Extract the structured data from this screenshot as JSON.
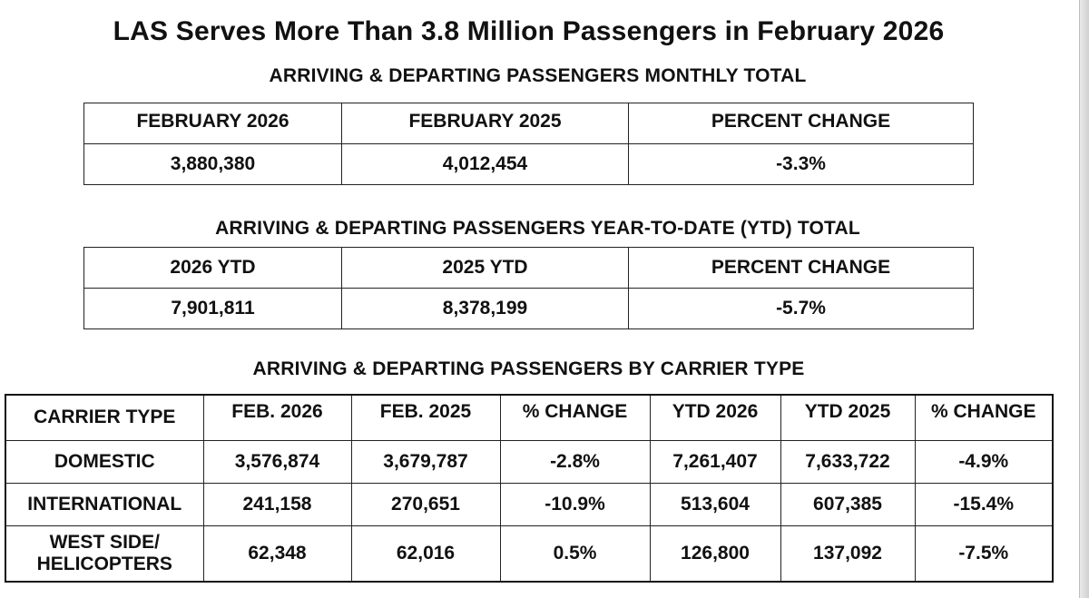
{
  "title": "LAS Serves More Than 3.8 Million Passengers in February 2026",
  "monthly": {
    "heading": "ARRIVING & DEPARTING PASSENGERS MONTHLY TOTAL",
    "headers": [
      "FEBRUARY 2026",
      "FEBRUARY 2025",
      "PERCENT CHANGE"
    ],
    "values": [
      "3,880,380",
      "4,012,454",
      "-3.3%"
    ]
  },
  "ytd": {
    "heading": "ARRIVING & DEPARTING PASSENGERS YEAR-TO-DATE (YTD) TOTAL",
    "headers": [
      "2026 YTD",
      "2025 YTD",
      "PERCENT CHANGE"
    ],
    "values": [
      "7,901,811",
      "8,378,199",
      "-5.7%"
    ]
  },
  "carrier": {
    "heading": "ARRIVING & DEPARTING PASSENGERS BY CARRIER TYPE",
    "headers": [
      "CARRIER TYPE",
      "FEB. 2026",
      "FEB. 2025",
      "% CHANGE",
      "YTD 2026",
      "YTD 2025",
      "% CHANGE"
    ],
    "rows": [
      {
        "label_line1": "DOMESTIC",
        "label_line2": "",
        "cells": [
          "3,576,874",
          "3,679,787",
          "-2.8%",
          "7,261,407",
          "7,633,722",
          "-4.9%"
        ]
      },
      {
        "label_line1": "INTERNATIONAL",
        "label_line2": "",
        "cells": [
          "241,158",
          "270,651",
          "-10.9%",
          "513,604",
          "607,385",
          "-15.4%"
        ]
      },
      {
        "label_line1": "WEST SIDE/",
        "label_line2": "HELICOPTERS",
        "cells": [
          "62,348",
          "62,016",
          "0.5%",
          "126,800",
          "137,092",
          "-7.5%"
        ]
      }
    ]
  }
}
